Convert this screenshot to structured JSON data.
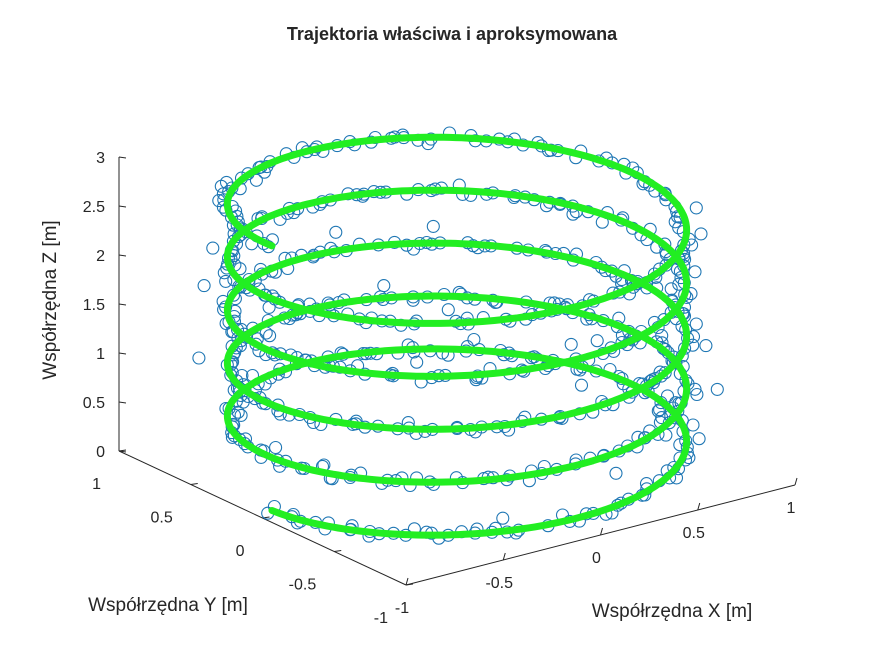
{
  "chart_data": {
    "type": "scatter",
    "subtype": "3d-helix",
    "title": "Trajektoria właściwa i aproksymowana",
    "xlabel": "Współrzędna X [m]",
    "ylabel": "Współrzędna Y [m]",
    "zlabel": "Współrzędna Z [m]",
    "xlim": [
      -1,
      1
    ],
    "ylim": [
      -1,
      1
    ],
    "zlim": [
      0,
      3
    ],
    "xticks": [
      {
        "value": -1,
        "label": "-1"
      },
      {
        "value": -0.5,
        "label": "-0.5"
      },
      {
        "value": 0,
        "label": "0"
      },
      {
        "value": 0.5,
        "label": "0.5"
      },
      {
        "value": 1,
        "label": "1"
      }
    ],
    "yticks": [
      {
        "value": 1,
        "label": "1"
      },
      {
        "value": 0.5,
        "label": "0.5"
      },
      {
        "value": 0,
        "label": "0"
      },
      {
        "value": -0.5,
        "label": "-0.5"
      },
      {
        "value": -1,
        "label": "-1"
      }
    ],
    "zticks": [
      {
        "value": 0,
        "label": "0"
      },
      {
        "value": 0.5,
        "label": "0.5"
      },
      {
        "value": 1,
        "label": "1"
      },
      {
        "value": 1.5,
        "label": "1.5"
      },
      {
        "value": 2,
        "label": "2"
      },
      {
        "value": 2.5,
        "label": "2.5"
      },
      {
        "value": 3,
        "label": "3"
      }
    ],
    "grid": false,
    "series": [
      {
        "kind": "helix-line",
        "color": "#22ee22",
        "radius": 0.95,
        "z_start": 0.05,
        "z_end": 2.75,
        "turns": 5,
        "phase_start_rad": 3.14
      },
      {
        "kind": "noisy-markers",
        "marker": "open-circle",
        "color": "#1f77b4",
        "radius": 0.95,
        "z_start": 0.05,
        "z_end": 2.75,
        "turns": 5,
        "phase_start_rad": 3.14,
        "point_count": 720,
        "noise_xy": 0.05,
        "noise_z": 0.03
      }
    ]
  }
}
